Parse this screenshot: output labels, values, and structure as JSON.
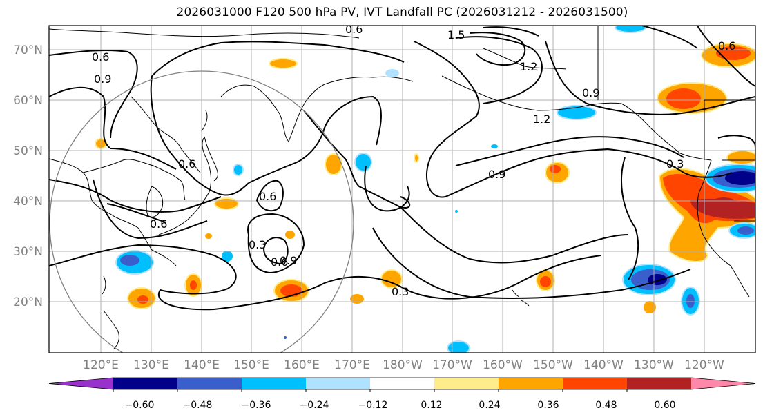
{
  "title": "2026031000 F120 500 hPa PV, IVT Landfall PC (2026031212 - 2026031500)",
  "lat_labels": [
    "70°N",
    "60°N",
    "50°N",
    "40°N",
    "30°N",
    "20°N"
  ],
  "lon_labels": [
    "120°E",
    "130°E",
    "140°E",
    "150°E",
    "160°E",
    "170°E",
    "180°W",
    "170°W",
    "160°W",
    "150°W",
    "140°W",
    "130°W",
    "120°W"
  ],
  "contour_labels": [
    "0.6",
    "0.9",
    "0.6",
    "0.6",
    "0.6",
    "0.3",
    "0.6",
    "0.9",
    "0.6",
    "0.3",
    "0.9",
    "1.5",
    "1.2",
    "1.2",
    "0.9",
    "0.3",
    "0.6"
  ],
  "colorbar": {
    "tick_labels": [
      "−0.60",
      "−0.48",
      "−0.36",
      "−0.24",
      "−0.12",
      "0.12",
      "0.24",
      "0.36",
      "0.48",
      "0.60"
    ],
    "colors": [
      "#9932cc",
      "#00008b",
      "#3a5fcd",
      "#00bfff",
      "#b0e2ff",
      "#ffffff",
      "#ffec8b",
      "#ffa500",
      "#ff4500",
      "#b22222",
      "#ff88aa"
    ]
  }
}
